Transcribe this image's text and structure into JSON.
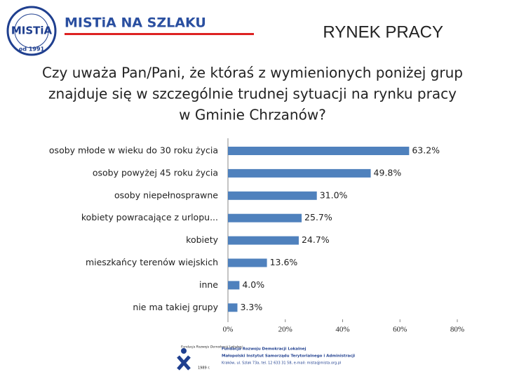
{
  "header": {
    "logo_text": "MISTiA",
    "logo_year": "od 1991",
    "brand": "MISTiA NA SZLAKU",
    "section": "RYNEK PRACY"
  },
  "chart_data": {
    "type": "hbar",
    "title": [
      "Czy uważa Pan/Pani, że któraś z wymienionych poniżej grup",
      "znajduje się w szczególnie trudnej sytuacji na rynku pracy",
      "w Gminie Chrzanów?"
    ],
    "categories": [
      "osoby młode w wieku do 30 roku życia",
      "osoby powyżej 45 roku życia",
      "osoby niepełnosprawne",
      "kobiety powracające z urlopu...",
      "kobiety",
      "mieszkańcy terenów wiejskich",
      "inne",
      "nie ma takiej grupy"
    ],
    "values": [
      63.2,
      49.8,
      31.0,
      25.7,
      24.7,
      13.6,
      4.0,
      3.3
    ],
    "value_labels": [
      "63.2%",
      "49.8%",
      "31.0%",
      "25.7%",
      "24.7%",
      "13.6%",
      "4.0%",
      "3.3%"
    ],
    "color": "#4f81bd",
    "xlim": [
      0,
      80
    ],
    "xticks": [
      {
        "value": 0,
        "label": "0%"
      },
      {
        "value": 20,
        "label": "20%"
      },
      {
        "value": 40,
        "label": "40%"
      },
      {
        "value": 60,
        "label": "60%"
      },
      {
        "value": 80,
        "label": "80%"
      }
    ]
  },
  "footer": {
    "small_logo": "Fundacja Rozwoju Demokracji Lokalnej",
    "small_year": "1989 r.",
    "line1": "Fundacja Rozwoju Demokracji Lokalnej",
    "line2": "Małopolski Instytut Samorządu Terytorialnego i Administracji",
    "line3": "Kraków, ul. Szlak 73a, tel. 12 633 31 58, e-mail: mista@mista.org.pl"
  }
}
